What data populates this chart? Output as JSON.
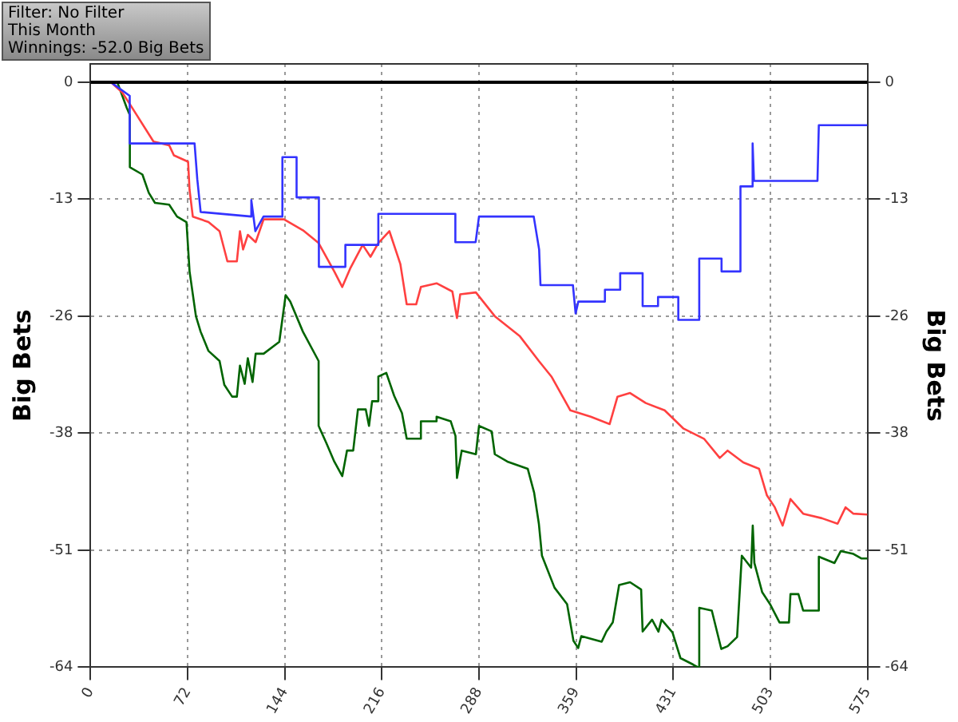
{
  "chart_data": {
    "type": "line",
    "annotations": [
      "Filter: No Filter",
      "This Month",
      "Winnings: -52.0 Big Bets"
    ],
    "ylabel": "Big Bets",
    "y2label": "Big Bets",
    "xlim": [
      0,
      575
    ],
    "xticks": [
      0,
      {
        "value": 71.875,
        "label": "72"
      },
      {
        "value": 143.75,
        "label": "144"
      },
      {
        "value": 215.625,
        "label": "216"
      },
      {
        "value": 287.5,
        "label": "288"
      },
      {
        "value": 359.375,
        "label": "359"
      },
      {
        "value": 431.25,
        "label": "431"
      },
      {
        "value": 503.125,
        "label": "503"
      },
      575
    ],
    "ylim": [
      -64,
      2
    ],
    "yticks": [
      0,
      {
        "value": -12.8,
        "label": "-13"
      },
      {
        "value": -25.6,
        "label": "-26"
      },
      {
        "value": -38.4,
        "label": "-38"
      },
      {
        "value": -51.2,
        "label": "-51"
      },
      -64
    ],
    "y2lim": [
      -64,
      2
    ],
    "y2ticks": [
      0,
      {
        "value": -12.8,
        "label": "-13"
      },
      {
        "value": -25.6,
        "label": "-26"
      },
      {
        "value": -38.4,
        "label": "-38"
      },
      {
        "value": -51.2,
        "label": "-51"
      },
      -64
    ],
    "grid": true,
    "legend": false,
    "marker": "none",
    "ref_lines": [
      {
        "axis": "y",
        "value": 0,
        "color": "#000000"
      }
    ],
    "series": [
      {
        "color": "#3333ff",
        "x": [
          15,
          29,
          29,
          77,
          79,
          81.5,
          119,
          119,
          122,
          128,
          142,
          142,
          152.5,
          152.5,
          169,
          169,
          188.6,
          188.6,
          213,
          213,
          270,
          270,
          285,
          287.5,
          328,
          332,
          333,
          357,
          359,
          361,
          380.7,
          380.7,
          392,
          392,
          408.6,
          408.6,
          420,
          420,
          435,
          435,
          450.5,
          450.5,
          467,
          467,
          481,
          481,
          490,
          490,
          491,
          538,
          539,
          575
        ],
        "values": [
          0,
          -1.5,
          -6.7,
          -6.7,
          -10.6,
          -14.2,
          -14.7,
          -12.9,
          -16.3,
          -14.7,
          -14.7,
          -8.2,
          -8.2,
          -12.6,
          -12.6,
          -20.2,
          -20.2,
          -17.8,
          -17.8,
          -14.4,
          -14.4,
          -17.5,
          -17.5,
          -14.7,
          -14.7,
          -18.3,
          -22.2,
          -22.2,
          -25.3,
          -24,
          -24,
          -22.7,
          -22.7,
          -20.9,
          -20.9,
          -24.5,
          -24.5,
          -23.5,
          -23.5,
          -26,
          -26,
          -19.3,
          -19.3,
          -20.7,
          -20.7,
          -11.4,
          -11.4,
          -6.7,
          -10.8,
          -10.8,
          -4.7,
          -4.7
        ]
      },
      {
        "color": "#ff4040",
        "x": [
          15,
          23.3,
          29.1,
          46.6,
          58.2,
          61.7,
          72.2,
          73.3,
          75.7,
          87.3,
          95.5,
          101.3,
          108.3,
          110.6,
          112.9,
          116.4,
          122.2,
          128.1,
          143.2,
          157.2,
          168.8,
          180.4,
          186.3,
          192.1,
          201.4,
          207.2,
          213,
          221.2,
          229.3,
          234,
          241,
          244.5,
          256.1,
          267.8,
          271.2,
          273.6,
          285.2,
          299.2,
          317.8,
          331.8,
          341.1,
          355.1,
          370.2,
          384.2,
          390,
          399.3,
          410.9,
          424.9,
          438.9,
          454,
          465.7,
          471.5,
          483.1,
          494.8,
          500.6,
          506.4,
          512.2,
          518,
          527.4,
          541.3,
          552.9,
          558.8,
          564.6,
          575
        ],
        "values": [
          0,
          -1.1,
          -2.4,
          -6.5,
          -6.9,
          -8,
          -8.7,
          -11.8,
          -14.7,
          -15.3,
          -16.3,
          -19.6,
          -19.6,
          -16.3,
          -18.3,
          -16.7,
          -17.5,
          -15,
          -15,
          -16.2,
          -17.6,
          -20.7,
          -22.4,
          -20.4,
          -17.8,
          -19.1,
          -17.6,
          -16.3,
          -19.9,
          -24.3,
          -24.3,
          -22.4,
          -22,
          -22.9,
          -25.8,
          -23.2,
          -23,
          -25.6,
          -27.8,
          -30.5,
          -32.2,
          -35.9,
          -36.6,
          -37.4,
          -34.4,
          -34,
          -35.1,
          -35.9,
          -37.9,
          -39,
          -41.1,
          -40.3,
          -41.6,
          -42.3,
          -45.2,
          -46.5,
          -48.5,
          -45.6,
          -47.2,
          -47.7,
          -48.3,
          -46.5,
          -47.2,
          -47.3
        ]
      },
      {
        "color": "#006400",
        "x": [
          15,
          19.8,
          26.8,
          29.1,
          29.1,
          38.4,
          43.1,
          47.7,
          58.2,
          64,
          71,
          73.3,
          78,
          81.5,
          87.3,
          95.5,
          99,
          104.8,
          108.3,
          110.6,
          114.1,
          116.4,
          119.9,
          122.2,
          128.1,
          139.7,
          144.4,
          147.8,
          157.2,
          168.8,
          168.8,
          174.6,
          180.4,
          186.3,
          189.8,
          194.4,
          197.9,
          203.7,
          206.1,
          208.4,
          213,
          213,
          218.9,
          224.7,
          230.5,
          234,
          244.5,
          244.5,
          256.1,
          256.1,
          266.6,
          270.1,
          271.2,
          274.7,
          285.2,
          287.5,
          296.9,
          299.2,
          308.5,
          323.6,
          328.3,
          331.8,
          334.1,
          343.4,
          352.7,
          357.4,
          360.9,
          363.2,
          378.3,
          381.8,
          386.5,
          391.2,
          399.3,
          407.5,
          408.6,
          415.6,
          420.3,
          422.6,
          430.7,
          436.6,
          445.9,
          449.4,
          450.5,
          459.8,
          466.8,
          471.5,
          478.5,
          482,
          488.9,
          490.1,
          491.3,
          497.1,
          502.9,
          509.9,
          516.9,
          518,
          523.9,
          527.4,
          539,
          539,
          550.6,
          555.2,
          564.6,
          570.4,
          575
        ],
        "values": [
          0,
          0,
          -2.8,
          -3.6,
          -9.3,
          -10.1,
          -12.1,
          -13.2,
          -13.4,
          -14.7,
          -15.3,
          -20.7,
          -25.6,
          -27.3,
          -29.4,
          -30.5,
          -33.1,
          -34.4,
          -34.4,
          -31,
          -33,
          -30.2,
          -32.8,
          -29.7,
          -29.7,
          -28.4,
          -23.3,
          -24,
          -27.3,
          -30.5,
          -37.6,
          -39.5,
          -41.5,
          -43.1,
          -40.3,
          -40.3,
          -35.8,
          -35.8,
          -37.6,
          -34.9,
          -34.9,
          -32.2,
          -31.8,
          -34.3,
          -36.2,
          -39,
          -39,
          -37.1,
          -37.1,
          -36.6,
          -37.1,
          -38.7,
          -43.3,
          -40.3,
          -40.7,
          -37.6,
          -38.2,
          -40.7,
          -41.5,
          -42.3,
          -44.9,
          -48.3,
          -51.8,
          -55.3,
          -57.1,
          -61.1,
          -61.9,
          -60.6,
          -61.2,
          -60.1,
          -59.1,
          -55,
          -54.7,
          -55.5,
          -60.1,
          -58.8,
          -60.1,
          -58.8,
          -60.2,
          -63,
          -63.7,
          -64,
          -57.5,
          -57.8,
          -62,
          -61.7,
          -60.7,
          -51.8,
          -53.1,
          -48.5,
          -52.6,
          -55.8,
          -57.1,
          -59.1,
          -59.1,
          -56,
          -56,
          -57.8,
          -57.8,
          -51.9,
          -52.6,
          -51.3,
          -51.6,
          -52.1,
          -52.1
        ]
      }
    ]
  }
}
